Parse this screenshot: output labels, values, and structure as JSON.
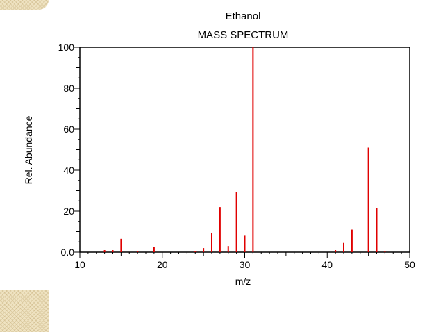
{
  "chart_data": {
    "type": "bar",
    "title": "Ethanol",
    "subtitle": "MASS SPECTRUM",
    "xlabel": "m/z",
    "ylabel": "Rel. Abundance",
    "xlim": [
      10,
      50
    ],
    "ylim": [
      0,
      100
    ],
    "x_ticks": [
      "10",
      "20",
      "30",
      "40",
      "50"
    ],
    "y_ticks": [
      "0.0",
      "20",
      "40",
      "60",
      "80",
      "100"
    ],
    "grid": false,
    "bar_color": "#e00000",
    "x": [
      13,
      14,
      15,
      17,
      19,
      24,
      25,
      26,
      27,
      28,
      29,
      30,
      31,
      41,
      42,
      43,
      45,
      46,
      47
    ],
    "values": [
      1,
      1,
      6.5,
      0.5,
      2.5,
      0.3,
      2,
      9.5,
      22,
      3,
      29.5,
      8,
      100,
      1,
      4.5,
      11,
      51,
      21.5,
      0.5
    ]
  }
}
